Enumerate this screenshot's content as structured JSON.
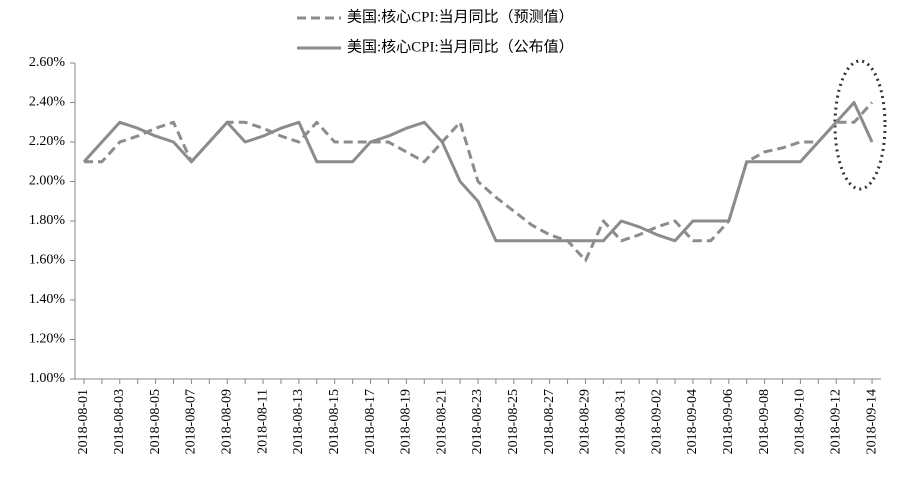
{
  "chart_data": {
    "type": "line",
    "categories": [
      "2018-08-01",
      null,
      "2018-08-03",
      null,
      "2018-08-05",
      null,
      "2018-08-07",
      null,
      "2018-08-09",
      null,
      "2018-08-11",
      null,
      "2018-08-13",
      null,
      "2018-08-15",
      null,
      "2018-08-17",
      null,
      "2018-08-19",
      null,
      "2018-08-21",
      null,
      "2018-08-23",
      null,
      "2018-08-25",
      null,
      "2018-08-27",
      null,
      "2018-08-29",
      null,
      "2018-08-31",
      null,
      "2018-09-02",
      null,
      "2018-09-04",
      null,
      "2018-09-06",
      null,
      "2018-09-08",
      null,
      "2018-09-10",
      null,
      "2018-09-12",
      null,
      "2018-09-14"
    ],
    "series": [
      {
        "name": "美国:核心CPI:当月同比（预测值）",
        "color": "#8c8c8c",
        "dash": true,
        "values": [
          2.1,
          2.1,
          2.2,
          2.23,
          2.27,
          2.3,
          2.1,
          2.2,
          2.3,
          2.3,
          2.27,
          2.23,
          2.2,
          2.3,
          2.2,
          2.2,
          2.2,
          2.2,
          2.15,
          2.1,
          2.2,
          2.3,
          2.0,
          1.92,
          1.85,
          1.78,
          1.73,
          1.7,
          1.6,
          1.8,
          1.7,
          1.73,
          1.77,
          1.8,
          1.7,
          1.7,
          1.8,
          2.1,
          2.15,
          2.17,
          2.2,
          2.2,
          2.3,
          2.3,
          2.4
        ]
      },
      {
        "name": "美国:核心CPI:当月同比（公布值）",
        "color": "#8c8c8c",
        "dash": false,
        "values": [
          2.1,
          2.2,
          2.3,
          2.27,
          2.23,
          2.2,
          2.1,
          2.2,
          2.3,
          2.2,
          2.23,
          2.27,
          2.3,
          2.1,
          2.1,
          2.1,
          2.2,
          2.23,
          2.27,
          2.3,
          2.2,
          2.0,
          1.9,
          1.7,
          1.7,
          1.7,
          1.7,
          1.7,
          1.7,
          1.7,
          1.8,
          1.77,
          1.73,
          1.7,
          1.8,
          1.8,
          1.8,
          2.1,
          2.1,
          2.1,
          2.1,
          2.2,
          2.3,
          2.4,
          2.2
        ]
      }
    ],
    "ylim": [
      1.0,
      2.6
    ],
    "yticks": [
      {
        "value": 1.0,
        "label": "1.00%"
      },
      {
        "value": 1.2,
        "label": "1.20%"
      },
      {
        "value": 1.4,
        "label": "1.40%"
      },
      {
        "value": 1.6,
        "label": "1.60%"
      },
      {
        "value": 1.8,
        "label": "1.80%"
      },
      {
        "value": 2.0,
        "label": "2.00%"
      },
      {
        "value": 2.2,
        "label": "2.20%"
      },
      {
        "value": 2.4,
        "label": "2.40%"
      },
      {
        "value": 2.6,
        "label": "2.60%"
      }
    ],
    "grid": false
  }
}
